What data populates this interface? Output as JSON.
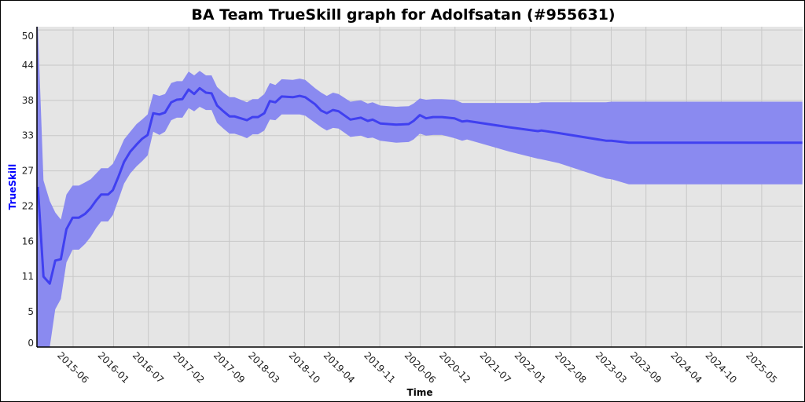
{
  "chart_data": {
    "type": "line",
    "title": "BA Team TrueSkill graph for Adolfsatan (#955631)",
    "xlabel": "Time",
    "ylabel": "TrueSkill",
    "xlim": [
      2014.896,
      2025.923
    ],
    "ylim": [
      0,
      50
    ],
    "grid": true,
    "colors": {
      "line": "#4040f0",
      "band": "#8a8af0",
      "plot_bg": "#e5e5e5",
      "grid": "#c8c8c8",
      "ylabel": "#0000ff"
    },
    "y_ticks": [
      {
        "value": 0,
        "label": "0"
      },
      {
        "value": 5.5,
        "label": "5"
      },
      {
        "value": 11,
        "label": "11"
      },
      {
        "value": 16.5,
        "label": "16"
      },
      {
        "value": 22,
        "label": "22"
      },
      {
        "value": 27.5,
        "label": "27"
      },
      {
        "value": 33,
        "label": "33"
      },
      {
        "value": 38.5,
        "label": "38"
      },
      {
        "value": 44,
        "label": "44"
      },
      {
        "value": 49.5,
        "label": "50"
      }
    ],
    "x_ticks": [
      "2015-06",
      "2016-01",
      "2016-07",
      "2017-02",
      "2017-09",
      "2018-03",
      "2018-10",
      "2019-04",
      "2019-11",
      "2020-06",
      "2020-12",
      "2021-07",
      "2022-01",
      "2022-08",
      "2023-03",
      "2023-09",
      "2024-04",
      "2024-10",
      "2025-05"
    ],
    "series_fields": [
      "year",
      "mean",
      "lower",
      "upper"
    ],
    "series": [
      [
        2014.91,
        25.0,
        0.0,
        50.0
      ],
      [
        2014.99,
        11.0,
        0.0,
        26.0
      ],
      [
        2015.08,
        9.9,
        0.0,
        22.8
      ],
      [
        2015.16,
        13.5,
        5.9,
        21.0
      ],
      [
        2015.24,
        13.7,
        7.5,
        19.9
      ],
      [
        2015.32,
        18.4,
        13.2,
        23.8
      ],
      [
        2015.41,
        20.2,
        15.2,
        25.2
      ],
      [
        2015.5,
        20.2,
        15.2,
        25.2
      ],
      [
        2015.59,
        20.8,
        16.1,
        25.7
      ],
      [
        2015.67,
        21.7,
        17.2,
        26.2
      ],
      [
        2015.75,
        22.9,
        18.6,
        27.1
      ],
      [
        2015.82,
        23.8,
        19.6,
        27.9
      ],
      [
        2015.92,
        23.8,
        19.6,
        27.9
      ],
      [
        2015.99,
        24.5,
        20.6,
        28.6
      ],
      [
        2016.07,
        26.6,
        23.0,
        30.4
      ],
      [
        2016.15,
        28.9,
        25.5,
        32.4
      ],
      [
        2016.24,
        30.5,
        27.1,
        33.6
      ],
      [
        2016.33,
        31.6,
        28.2,
        34.8
      ],
      [
        2016.41,
        32.5,
        29.0,
        35.5
      ],
      [
        2016.49,
        33.1,
        29.9,
        36.3
      ],
      [
        2016.57,
        36.5,
        33.6,
        39.5
      ],
      [
        2016.66,
        36.3,
        33.1,
        39.2
      ],
      [
        2016.74,
        36.6,
        33.6,
        39.5
      ],
      [
        2016.83,
        38.2,
        35.4,
        41.2
      ],
      [
        2016.91,
        38.6,
        35.8,
        41.5
      ],
      [
        2016.99,
        38.7,
        35.8,
        41.5
      ],
      [
        2017.08,
        40.2,
        37.3,
        43.0
      ],
      [
        2017.16,
        39.5,
        36.8,
        42.4
      ],
      [
        2017.24,
        40.4,
        37.5,
        43.1
      ],
      [
        2017.33,
        39.7,
        37.0,
        42.4
      ],
      [
        2017.41,
        39.6,
        37.0,
        42.4
      ],
      [
        2017.49,
        37.7,
        35.0,
        40.6
      ],
      [
        2017.58,
        36.8,
        34.1,
        39.7
      ],
      [
        2017.67,
        36.0,
        33.3,
        39.0
      ],
      [
        2017.74,
        36.0,
        33.3,
        39.0
      ],
      [
        2017.83,
        35.7,
        33.0,
        38.6
      ],
      [
        2017.92,
        35.4,
        32.6,
        38.2
      ],
      [
        2018.0,
        35.9,
        33.2,
        38.7
      ],
      [
        2018.08,
        35.9,
        33.2,
        38.7
      ],
      [
        2018.17,
        36.5,
        33.8,
        39.5
      ],
      [
        2018.25,
        38.4,
        35.5,
        41.2
      ],
      [
        2018.33,
        38.2,
        35.4,
        40.9
      ],
      [
        2018.42,
        39.1,
        36.3,
        41.8
      ],
      [
        2018.58,
        39.0,
        36.3,
        41.7
      ],
      [
        2018.68,
        39.2,
        36.3,
        41.9
      ],
      [
        2018.76,
        39.0,
        36.1,
        41.7
      ],
      [
        2018.9,
        37.9,
        35.0,
        40.4
      ],
      [
        2018.99,
        36.9,
        34.3,
        39.7
      ],
      [
        2019.07,
        36.5,
        33.8,
        39.2
      ],
      [
        2019.16,
        37.0,
        34.2,
        39.7
      ],
      [
        2019.24,
        36.8,
        34.1,
        39.5
      ],
      [
        2019.41,
        35.5,
        32.8,
        38.3
      ],
      [
        2019.56,
        35.8,
        33.0,
        38.5
      ],
      [
        2019.66,
        35.3,
        32.6,
        38.0
      ],
      [
        2019.73,
        35.5,
        32.7,
        38.2
      ],
      [
        2019.84,
        34.9,
        32.2,
        37.7
      ],
      [
        2020.07,
        34.7,
        31.9,
        37.5
      ],
      [
        2020.25,
        34.8,
        32.0,
        37.6
      ],
      [
        2020.32,
        35.3,
        32.4,
        38.0
      ],
      [
        2020.41,
        36.2,
        33.3,
        38.8
      ],
      [
        2020.5,
        35.7,
        33.0,
        38.6
      ],
      [
        2020.6,
        35.9,
        33.1,
        38.7
      ],
      [
        2020.73,
        35.9,
        33.1,
        38.7
      ],
      [
        2020.91,
        35.7,
        32.6,
        38.6
      ],
      [
        2021.02,
        35.2,
        32.2,
        38.1
      ],
      [
        2021.09,
        35.3,
        32.4,
        38.1
      ],
      [
        2021.7,
        34.3,
        30.5,
        38.1
      ],
      [
        2022.11,
        33.7,
        29.4,
        38.1
      ],
      [
        2022.16,
        33.8,
        29.3,
        38.2
      ],
      [
        2022.41,
        33.4,
        28.7,
        38.2
      ],
      [
        2023.09,
        32.2,
        26.3,
        38.2
      ],
      [
        2023.17,
        32.2,
        26.2,
        38.3
      ],
      [
        2023.42,
        31.9,
        25.4,
        38.3
      ],
      [
        2025.92,
        31.9,
        25.4,
        38.3
      ]
    ]
  }
}
